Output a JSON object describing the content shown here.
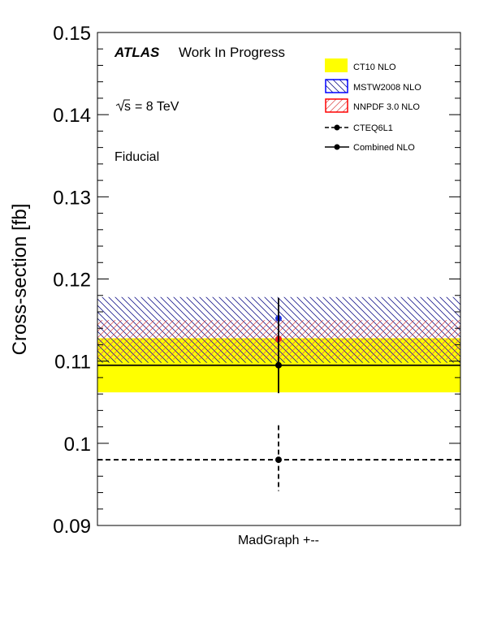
{
  "chart_data": {
    "type": "scatter",
    "title": "",
    "ylabel": "Cross-section [fb]",
    "xlabel": "",
    "ylim": [
      0.09,
      0.15
    ],
    "y_ticks": [
      0.09,
      0.1,
      0.11,
      0.12,
      0.13,
      0.14,
      0.15
    ],
    "y_tick_labels": [
      "0.09",
      "0.1",
      "0.11",
      "0.12",
      "0.13",
      "0.14",
      "0.15"
    ],
    "categories": [
      "MadGraph +--"
    ],
    "annotations": {
      "experiment": "ATLAS",
      "status": "Work In Progress",
      "energy_sqrt": "s",
      "energy_value": "= 8 TeV",
      "region": "Fiducial"
    },
    "legend": {
      "placement": "top-right",
      "entries": [
        {
          "label": "CT10 NLO",
          "style": "fill",
          "color": "#ffff00"
        },
        {
          "label": "MSTW2008 NLO",
          "style": "hatch",
          "color": "#0000ff"
        },
        {
          "label": "NNPDF 3.0 NLO",
          "style": "hatch",
          "color": "#ff0000"
        },
        {
          "label": "CTEQ6L1",
          "style": "dashed-marker",
          "color": "#000000"
        },
        {
          "label": "Combined NLO",
          "style": "solid-marker",
          "color": "#000000"
        }
      ]
    },
    "bands": [
      {
        "name": "CT10 NLO",
        "low": 0.1062,
        "high": 0.1128,
        "color": "#ffff00",
        "pattern": "solid"
      },
      {
        "name": "MSTW2008 NLO",
        "low": 0.1098,
        "high": 0.1178,
        "color": "#1a1a8c",
        "pattern": "hatch"
      },
      {
        "name": "NNPDF 3.0 NLO",
        "low": 0.1102,
        "high": 0.115,
        "color": "#e06060",
        "pattern": "hatch"
      }
    ],
    "points": [
      {
        "name": "MSTW2008 NLO",
        "y": 0.1152,
        "color": "#2233dd"
      },
      {
        "name": "NNPDF 3.0 NLO",
        "y": 0.1127,
        "color": "#ee2222"
      },
      {
        "name": "Combined NLO",
        "y": 0.1095,
        "low": 0.1061,
        "high": 0.1177,
        "color": "#000000",
        "line": "solid"
      },
      {
        "name": "CTEQ6L1",
        "y": 0.098,
        "low": 0.0942,
        "high": 0.1022,
        "color": "#000000",
        "line": "dashed"
      }
    ]
  }
}
